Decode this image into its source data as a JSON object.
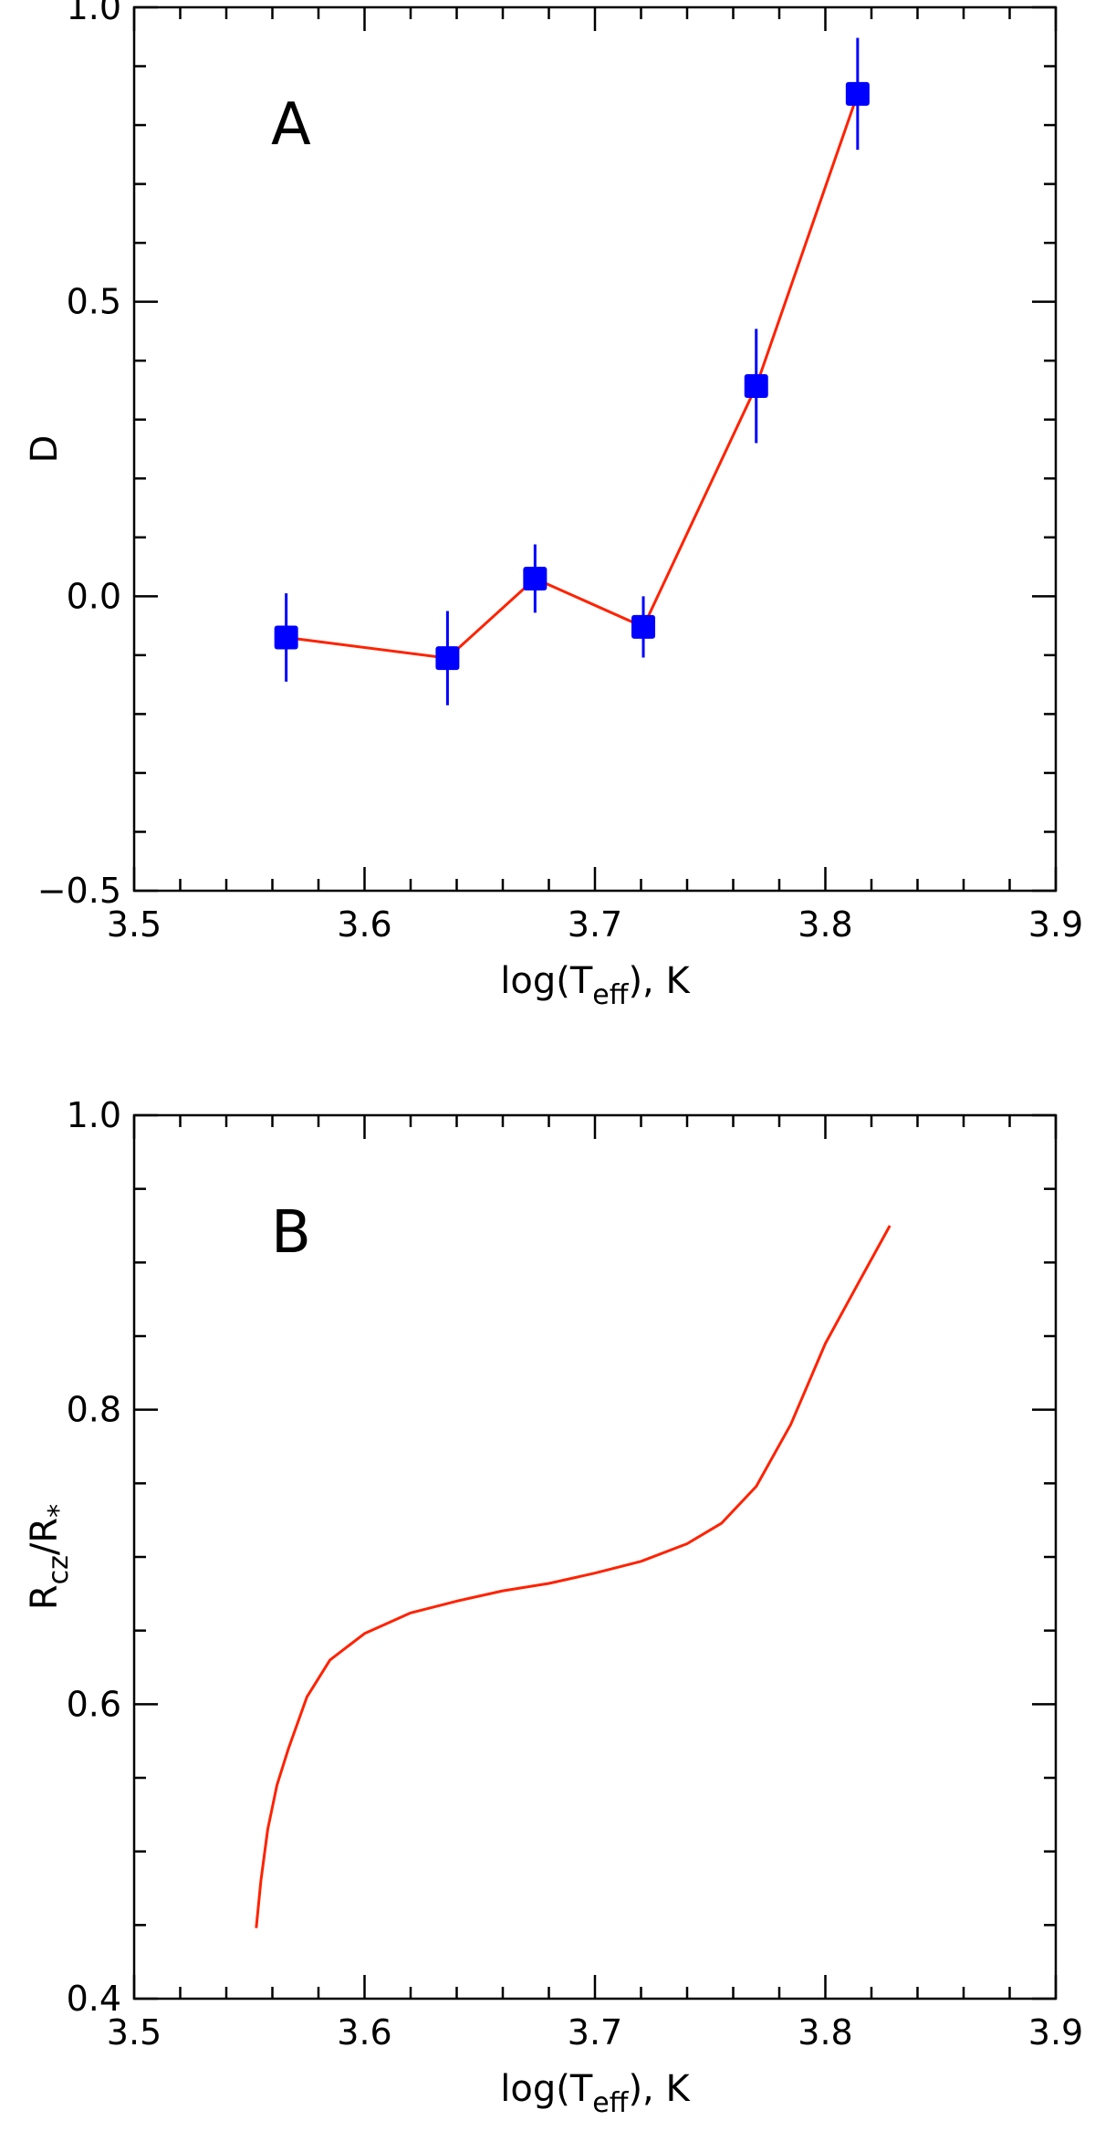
{
  "chart_data": [
    {
      "type": "line",
      "panel_label": "A",
      "xlabel": {
        "main": "log(T",
        "sub": "eff",
        "tail": "), K"
      },
      "ylabel": "D",
      "xlim": [
        3.5,
        3.9
      ],
      "ylim": [
        -0.5,
        1.0
      ],
      "x_ticks": [
        3.5,
        3.6,
        3.7,
        3.8,
        3.9
      ],
      "x_tick_labels": [
        "3.5",
        "3.6",
        "3.7",
        "3.8",
        "3.9"
      ],
      "x_minor_step": 0.02,
      "y_ticks": [
        -0.5,
        0.0,
        0.5,
        1.0
      ],
      "y_tick_labels": [
        "−0.5",
        "0.0",
        "0.5",
        "1.0"
      ],
      "y_minor_step": 0.1,
      "grid": false,
      "line_color": "#ff2200",
      "marker_color": "#0000ff",
      "errorbar_color": "#0000ff",
      "points": [
        {
          "x": 3.566,
          "y": -0.07,
          "err": 0.075
        },
        {
          "x": 3.636,
          "y": -0.105,
          "err": 0.08
        },
        {
          "x": 3.674,
          "y": 0.03,
          "err": 0.058
        },
        {
          "x": 3.721,
          "y": -0.052,
          "err": 0.052
        },
        {
          "x": 3.77,
          "y": 0.357,
          "err": 0.097
        },
        {
          "x": 3.814,
          "y": 0.853,
          "err": 0.095
        }
      ]
    },
    {
      "type": "line",
      "panel_label": "B",
      "xlabel": {
        "main": "log(T",
        "sub": "eff",
        "tail": "), K"
      },
      "ylabel": {
        "main": "R",
        "sub": "cz",
        "mid": "/R",
        "sub2": "*"
      },
      "xlim": [
        3.5,
        3.9
      ],
      "ylim": [
        0.4,
        1.0
      ],
      "x_ticks": [
        3.5,
        3.6,
        3.7,
        3.8,
        3.9
      ],
      "x_tick_labels": [
        "3.5",
        "3.6",
        "3.7",
        "3.8",
        "3.9"
      ],
      "x_minor_step": 0.02,
      "y_ticks": [
        0.4,
        0.6,
        0.8,
        1.0
      ],
      "y_tick_labels": [
        "0.4",
        "0.6",
        "0.8",
        "1.0"
      ],
      "y_minor_step": 0.05,
      "grid": false,
      "line_color": "#ff2200",
      "x": [
        3.553,
        3.555,
        3.558,
        3.562,
        3.567,
        3.575,
        3.585,
        3.6,
        3.62,
        3.64,
        3.66,
        3.68,
        3.7,
        3.72,
        3.74,
        3.755,
        3.77,
        3.785,
        3.8,
        3.815,
        3.828
      ],
      "y": [
        0.448,
        0.48,
        0.515,
        0.545,
        0.57,
        0.605,
        0.63,
        0.648,
        0.662,
        0.67,
        0.677,
        0.682,
        0.689,
        0.697,
        0.709,
        0.723,
        0.748,
        0.79,
        0.845,
        0.888,
        0.925
      ]
    }
  ]
}
